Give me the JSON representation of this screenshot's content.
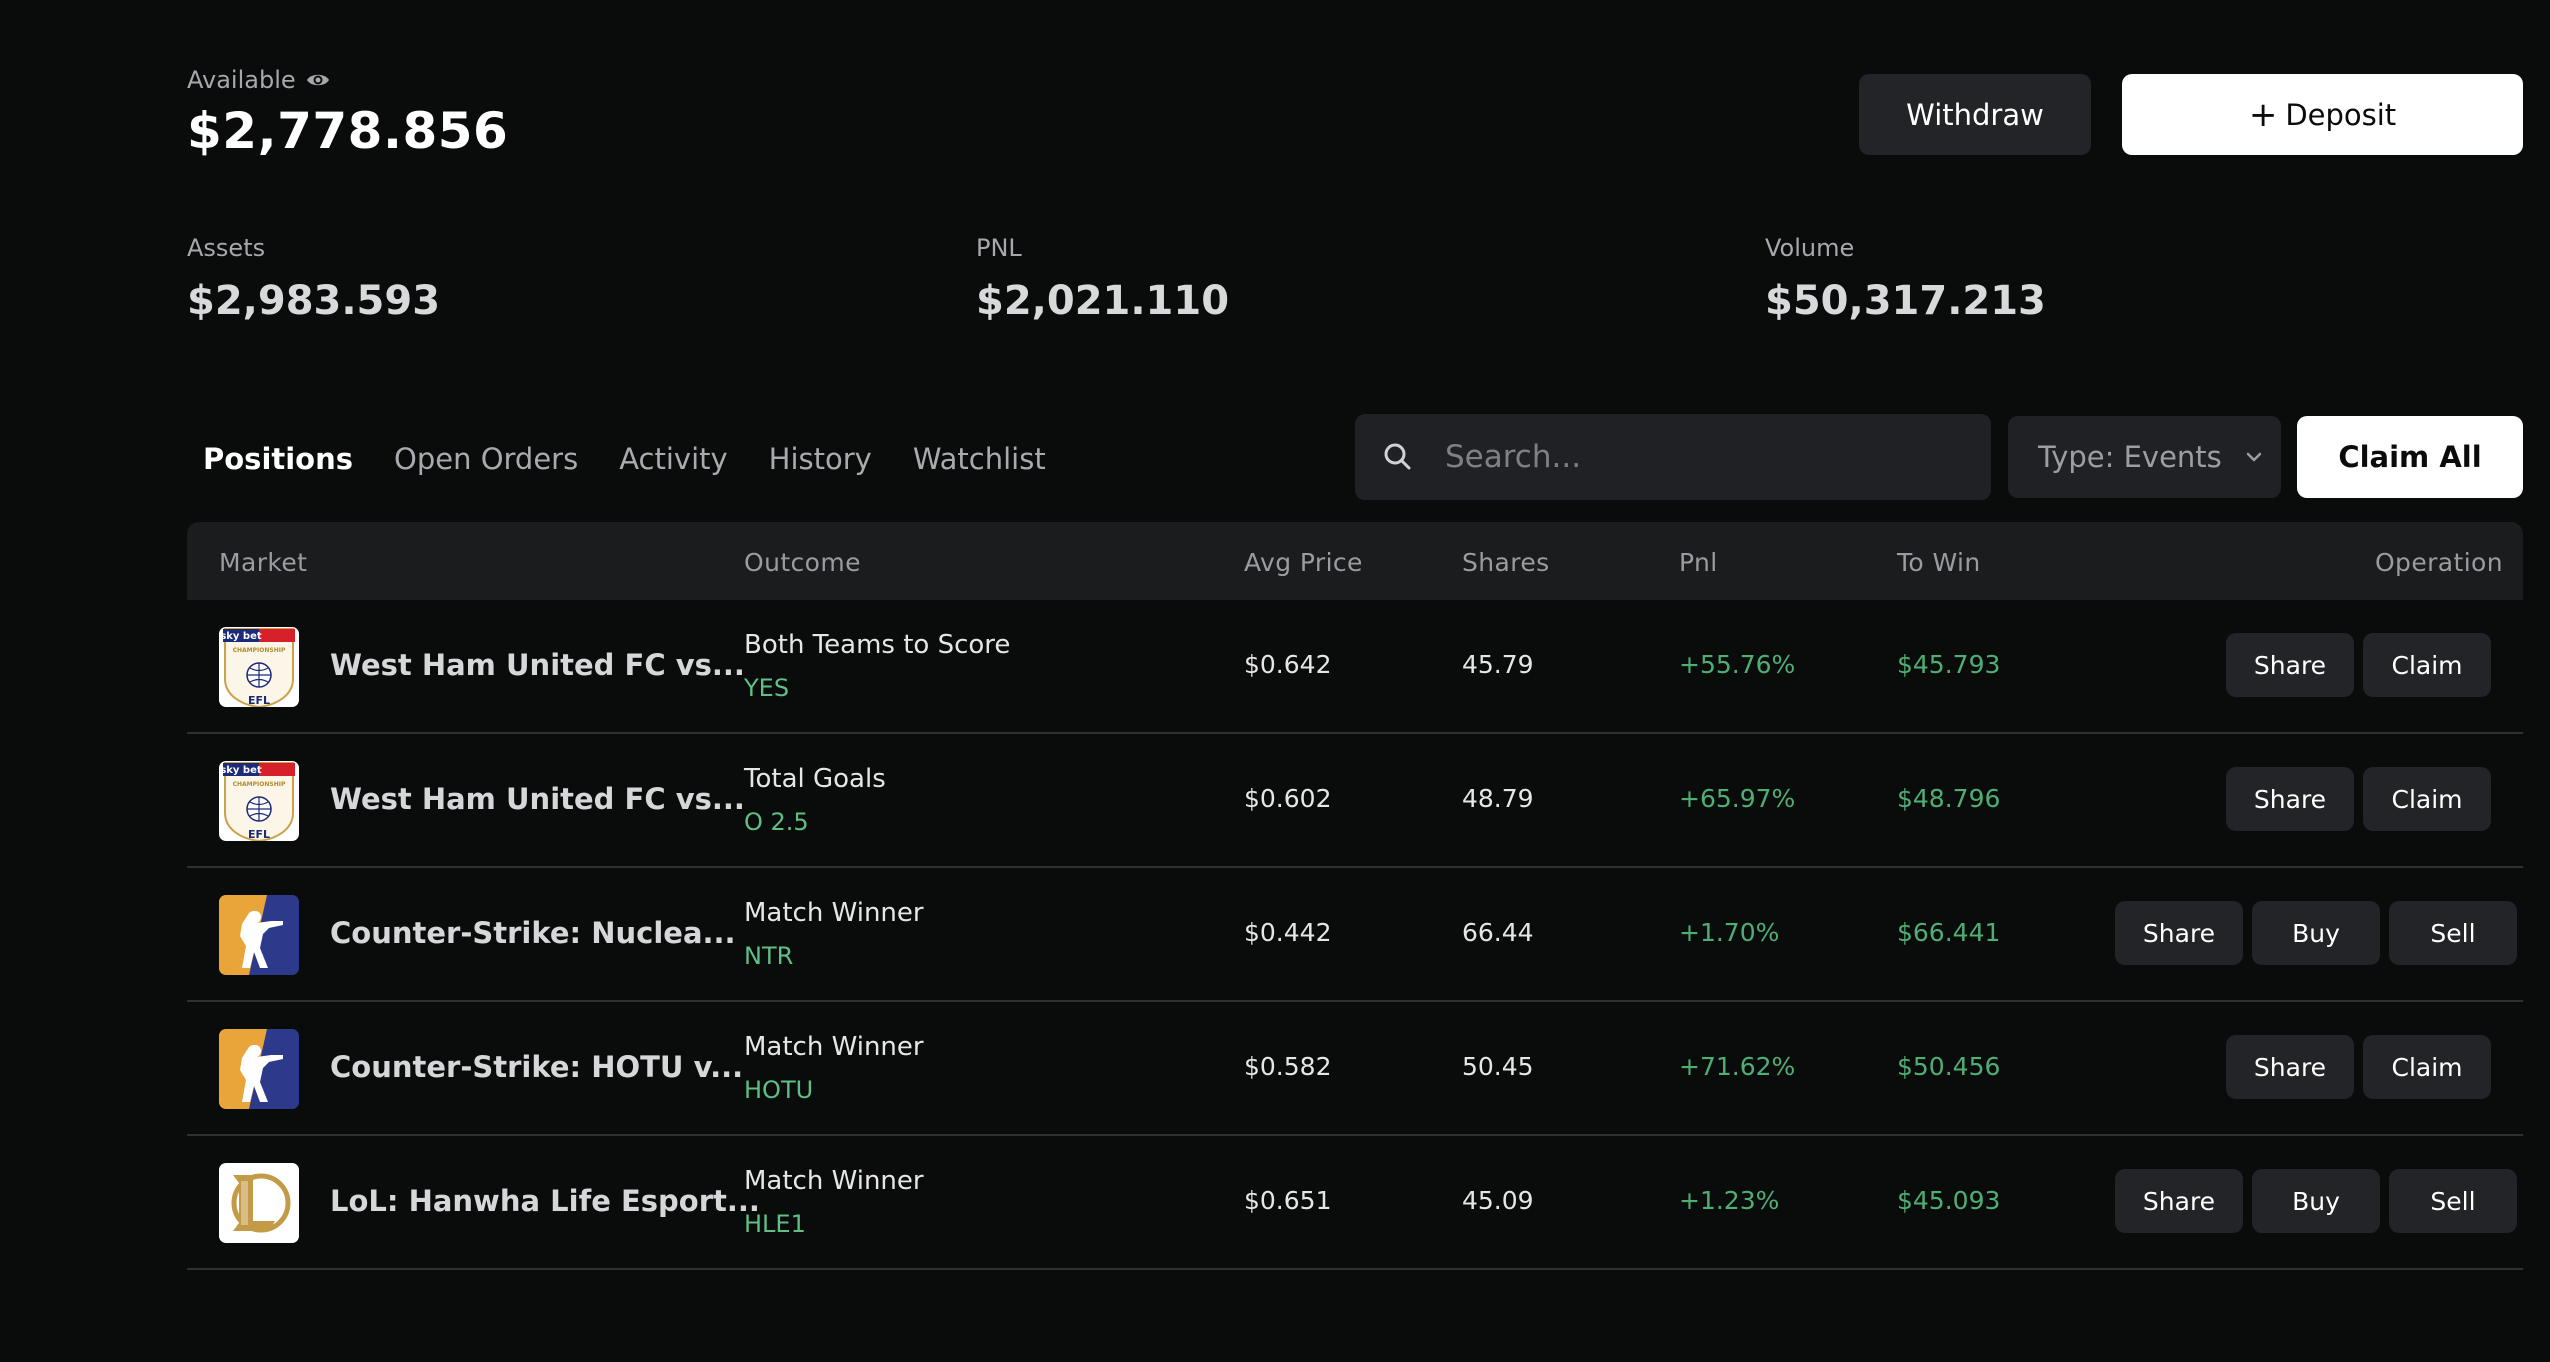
{
  "header": {
    "available_label": "Available",
    "balance": "$2,778.856",
    "withdraw_label": "Withdraw",
    "deposit_label": "Deposit"
  },
  "stats": [
    {
      "label": "Assets",
      "value": "$2,983.593"
    },
    {
      "label": "PNL",
      "value": "$2,021.110"
    },
    {
      "label": "Volume",
      "value": "$50,317.213"
    }
  ],
  "tabs": [
    {
      "label": "Positions",
      "active": true
    },
    {
      "label": "Open Orders",
      "active": false
    },
    {
      "label": "Activity",
      "active": false
    },
    {
      "label": "History",
      "active": false
    },
    {
      "label": "Watchlist",
      "active": false
    }
  ],
  "search": {
    "placeholder": "Search...",
    "value": ""
  },
  "type_filter": {
    "label": "Type: Events"
  },
  "claim_all_label": "Claim All",
  "table": {
    "columns": [
      "Market",
      "Outcome",
      "Avg Price",
      "Shares",
      "Pnl",
      "To Win",
      "Operation"
    ],
    "rows": [
      {
        "logo": "efl-championship-logo",
        "market": "West Ham United FC vs...",
        "outcome_title": "Both Teams to Score",
        "outcome_value": "YES",
        "avg_price": "$0.642",
        "shares": "45.79",
        "pnl": "+55.76%",
        "to_win": "$45.793",
        "operations": [
          "Share",
          "Claim"
        ]
      },
      {
        "logo": "efl-championship-logo",
        "market": "West Ham United FC vs...",
        "outcome_title": "Total Goals",
        "outcome_value": "O 2.5",
        "avg_price": "$0.602",
        "shares": "48.79",
        "pnl": "+65.97%",
        "to_win": "$48.796",
        "operations": [
          "Share",
          "Claim"
        ]
      },
      {
        "logo": "counter-strike-logo",
        "market": "Counter-Strike: Nuclea...",
        "outcome_title": "Match Winner",
        "outcome_value": "NTR",
        "avg_price": "$0.442",
        "shares": "66.44",
        "pnl": "+1.70%",
        "to_win": "$66.441",
        "operations": [
          "Share",
          "Buy",
          "Sell"
        ]
      },
      {
        "logo": "counter-strike-logo",
        "market": "Counter-Strike: HOTU v...",
        "outcome_title": "Match Winner",
        "outcome_value": "HOTU",
        "avg_price": "$0.582",
        "shares": "50.45",
        "pnl": "+71.62%",
        "to_win": "$50.456",
        "operations": [
          "Share",
          "Claim"
        ]
      },
      {
        "logo": "league-of-legends-logo",
        "market": "LoL: Hanwha Life Esport...",
        "outcome_title": "Match Winner",
        "outcome_value": "HLE1",
        "avg_price": "$0.651",
        "shares": "45.09",
        "pnl": "+1.23%",
        "to_win": "$45.093",
        "operations": [
          "Share",
          "Buy",
          "Sell"
        ]
      }
    ]
  },
  "colors": {
    "background": "#0a0b0b",
    "panel": "#1f2124",
    "button_dark": "#222427",
    "positive": "#4fae74",
    "outcome": "#5fbf84"
  },
  "logo_text": {
    "efl_top": "sky bet",
    "efl_mid": "CHAMPIONSHIP",
    "efl_bottom": "EFL"
  }
}
